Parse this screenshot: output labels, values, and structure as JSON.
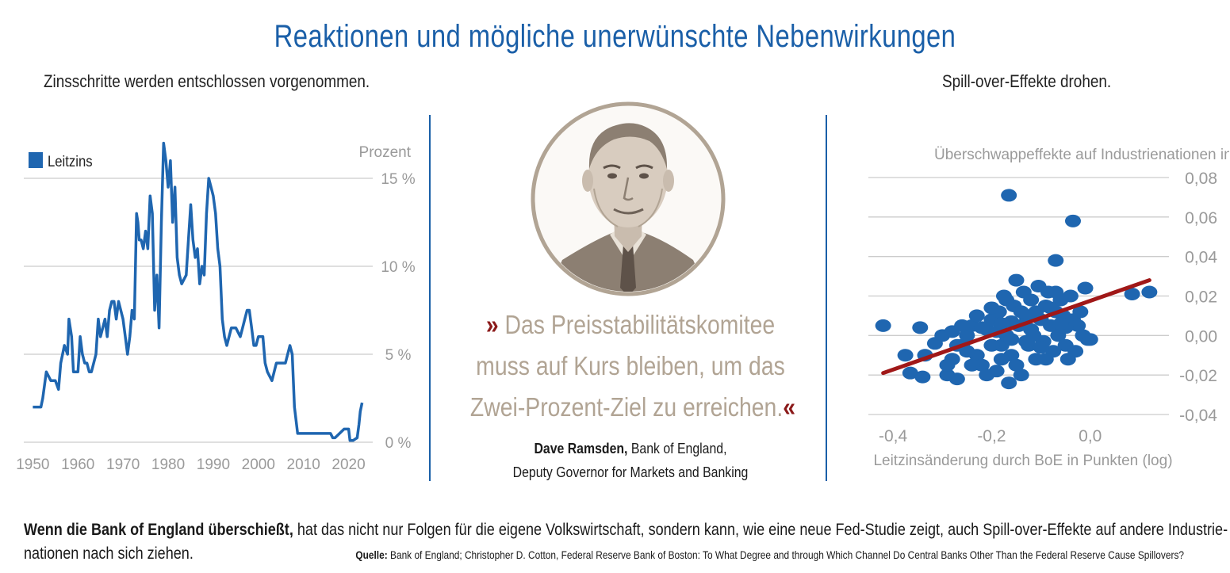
{
  "title": "Reaktionen und mögliche unerwünschte Nebenwirkungen",
  "left_subtitle": "Zinsschritte werden entschlossen vorgenommen.",
  "right_subtitle": "Spill-over-Effekte drohen.",
  "colors": {
    "accent": "#1a5fa8",
    "line": "#1f66b0",
    "trend": "#a01818",
    "quote_text": "#b1a494",
    "guillemet": "#8b1a1a"
  },
  "quote": {
    "open": "»",
    "close": "«",
    "lines": [
      "Das Preisstabilitätskomitee",
      "muss auf Kurs bleiben, um das",
      "Zwei-Prozent-Ziel zu erreichen."
    ],
    "speaker": "Dave Ramsden,",
    "speaker_org": " Bank of England,",
    "speaker_role": "Deputy Governor for Markets and Banking"
  },
  "footer": {
    "bold": "Wenn die Bank of England überschießt,",
    "text": " hat das nicht nur Folgen für die eigene Volkswirtschaft, sondern kann, wie eine neue Fed-Studie zeigt, auch Spill-over-Effekte auf andere Industrie-",
    "text2": "nationen nach sich ziehen.",
    "source_label": "Quelle:",
    "source_text": " Bank of England; Christopher D. Cotton, Federal Reserve Bank of Boston: To What Degree and through Which Channel Do Central Banks Other Than the Federal Reserve Cause Spillovers?"
  },
  "chart_data": [
    {
      "type": "line",
      "ylabel": "Prozent",
      "legend": "Leitzins",
      "legend_position": "top-left",
      "xlim": [
        1948,
        2025
      ],
      "ylim": [
        0,
        15
      ],
      "x_ticks": [
        1950,
        1960,
        1970,
        1980,
        1990,
        2000,
        2010,
        2020
      ],
      "y_ticks": [
        0,
        5,
        10,
        15
      ],
      "y_tick_labels": [
        "0 %",
        "5 %",
        "10 %",
        "15 %"
      ],
      "series": [
        {
          "name": "Leitzins",
          "x": [
            1950,
            1951.8,
            1952.2,
            1953,
            1954,
            1954.5,
            1955,
            1955.7,
            1956.2,
            1957,
            1957.7,
            1958,
            1958.6,
            1959,
            1960,
            1960.5,
            1961,
            1961.5,
            1962,
            1962.5,
            1963,
            1964,
            1964.5,
            1965,
            1966,
            1966.5,
            1967,
            1967.5,
            1968,
            1968.5,
            1969,
            1970,
            1970.5,
            1971,
            1971.5,
            1972,
            1972.5,
            1973,
            1973.3,
            1973.6,
            1974,
            1974.5,
            1975,
            1975.5,
            1976,
            1976.5,
            1977,
            1977.5,
            1978,
            1978.5,
            1979,
            1979.5,
            1980,
            1980.5,
            1981,
            1981.5,
            1982,
            1982.5,
            1983,
            1984,
            1984.5,
            1985,
            1985.5,
            1986,
            1986.5,
            1987,
            1987.5,
            1988,
            1988.5,
            1989,
            1989.5,
            1990,
            1990.5,
            1991,
            1991.5,
            1992,
            1992.5,
            1993,
            1994,
            1994.5,
            1995,
            1996,
            1996.5,
            1997,
            1997.5,
            1998,
            1998.5,
            1999,
            1999.5,
            2000,
            2001,
            2001.5,
            2002,
            2003,
            2003.5,
            2004,
            2005,
            2006,
            2007,
            2007.5,
            2008,
            2008.7,
            2009,
            2009.5,
            2016,
            2016.5,
            2017,
            2018,
            2019,
            2020,
            2020.3,
            2021,
            2021.9,
            2022.3,
            2022.6,
            2023
          ],
          "values": [
            2,
            2,
            2.5,
            4,
            3.5,
            3.5,
            3.5,
            3,
            4.5,
            5.5,
            5,
            7,
            6,
            4,
            4,
            6,
            5,
            4.5,
            4.5,
            4,
            4,
            5,
            7,
            6,
            7,
            6,
            7.5,
            8,
            8,
            7,
            8,
            7,
            6,
            5,
            6,
            7.5,
            7,
            13,
            12.5,
            11.5,
            11.5,
            11,
            12,
            11,
            14,
            13,
            7.5,
            9.5,
            6.5,
            12.5,
            17,
            16,
            14.5,
            16,
            12.5,
            14.5,
            10.5,
            9.5,
            9,
            9.5,
            11.5,
            13.5,
            11.5,
            10.5,
            11,
            9,
            10,
            9.5,
            13,
            15,
            14.5,
            14,
            13,
            11,
            10,
            7,
            6,
            5.5,
            6.5,
            6.5,
            6.5,
            6,
            6.5,
            7,
            7.5,
            7.5,
            6.5,
            5.5,
            5.5,
            6,
            6,
            4.5,
            4,
            3.5,
            4,
            4.5,
            4.5,
            4.5,
            5.5,
            5,
            2,
            0.5,
            0.5,
            0.5,
            0.5,
            0.25,
            0.25,
            0.5,
            0.75,
            0.75,
            0.1,
            0.1,
            0.25,
            1,
            1.75,
            2.25
          ]
        }
      ]
    },
    {
      "type": "scatter",
      "title": "Überschwappeffekte auf Industrienationen in Punkten (log)",
      "xlabel": "Leitzinsänderung durch BoE in Punkten (log)",
      "xlim": [
        -0.45,
        0.15
      ],
      "ylim": [
        -0.04,
        0.08
      ],
      "x_ticks": [
        -0.4,
        -0.2,
        0.0
      ],
      "x_tick_labels": [
        "-0,4",
        "-0,2",
        "0,0"
      ],
      "y_ticks": [
        -0.04,
        -0.02,
        0.0,
        0.02,
        0.04,
        0.06,
        0.08
      ],
      "y_tick_labels": [
        "-0,04",
        "-0,02",
        "0,00",
        "0,02",
        "0,04",
        "0,06",
        "0,08"
      ],
      "trend_line": {
        "x": [
          -0.42,
          0.12
        ],
        "y": [
          -0.019,
          0.028
        ]
      },
      "points": [
        [
          -0.165,
          0.071
        ],
        [
          -0.035,
          0.058
        ],
        [
          -0.07,
          0.038
        ],
        [
          -0.42,
          0.005
        ],
        [
          -0.375,
          -0.01
        ],
        [
          -0.365,
          -0.019
        ],
        [
          -0.34,
          -0.021
        ],
        [
          -0.335,
          -0.01
        ],
        [
          -0.315,
          -0.004
        ],
        [
          -0.345,
          0.004
        ],
        [
          -0.3,
          0.0
        ],
        [
          -0.29,
          -0.02
        ],
        [
          -0.27,
          -0.022
        ],
        [
          -0.28,
          -0.012
        ],
        [
          -0.26,
          -0.005
        ],
        [
          -0.25,
          0.0
        ],
        [
          -0.24,
          0.005
        ],
        [
          -0.23,
          -0.01
        ],
        [
          -0.22,
          -0.015
        ],
        [
          -0.21,
          0.003
        ],
        [
          -0.2,
          0.008
        ],
        [
          -0.19,
          -0.018
        ],
        [
          -0.185,
          0.012
        ],
        [
          -0.18,
          -0.005
        ],
        [
          -0.175,
          0.02
        ],
        [
          -0.17,
          0.0
        ],
        [
          -0.165,
          -0.024
        ],
        [
          -0.16,
          -0.01
        ],
        [
          -0.155,
          0.015
        ],
        [
          -0.15,
          0.028
        ],
        [
          -0.145,
          0.005
        ],
        [
          -0.14,
          -0.02
        ],
        [
          -0.135,
          0.022
        ],
        [
          -0.13,
          0.01
        ],
        [
          -0.125,
          -0.005
        ],
        [
          -0.12,
          0.018
        ],
        [
          -0.115,
          0.0
        ],
        [
          -0.11,
          -0.012
        ],
        [
          -0.105,
          0.025
        ],
        [
          -0.1,
          0.008
        ],
        [
          -0.095,
          -0.003
        ],
        [
          -0.09,
          0.015
        ],
        [
          -0.085,
          0.022
        ],
        [
          -0.08,
          0.005
        ],
        [
          -0.075,
          -0.008
        ],
        [
          -0.07,
          0.012
        ],
        [
          -0.065,
          0.0
        ],
        [
          -0.06,
          0.018
        ],
        [
          -0.055,
          0.01
        ],
        [
          -0.05,
          -0.005
        ],
        [
          -0.045,
          -0.012
        ],
        [
          -0.04,
          0.02
        ],
        [
          -0.035,
          0.008
        ],
        [
          -0.03,
          -0.008
        ],
        [
          -0.025,
          0.005
        ],
        [
          -0.02,
          0.012
        ],
        [
          -0.015,
          0.0
        ],
        [
          -0.01,
          0.024
        ],
        [
          -0.005,
          -0.002
        ],
        [
          0.0,
          -0.002
        ],
        [
          0.085,
          0.021
        ],
        [
          0.12,
          0.022
        ],
        [
          -0.23,
          0.01
        ],
        [
          -0.24,
          -0.015
        ],
        [
          -0.26,
          0.005
        ],
        [
          -0.28,
          0.002
        ],
        [
          -0.21,
          -0.02
        ],
        [
          -0.17,
          0.018
        ],
        [
          -0.19,
          0.002
        ],
        [
          -0.15,
          -0.015
        ],
        [
          -0.13,
          -0.003
        ],
        [
          -0.11,
          0.012
        ],
        [
          -0.09,
          -0.012
        ],
        [
          -0.07,
          0.022
        ],
        [
          -0.05,
          0.004
        ],
        [
          -0.22,
          0.004
        ],
        [
          -0.2,
          -0.005
        ],
        [
          -0.18,
          -0.012
        ],
        [
          -0.16,
          0.007
        ],
        [
          -0.14,
          0.012
        ],
        [
          -0.12,
          0.003
        ],
        [
          -0.1,
          -0.006
        ],
        [
          -0.08,
          0.014
        ],
        [
          -0.06,
          0.006
        ],
        [
          -0.25,
          -0.008
        ],
        [
          -0.27,
          -0.005
        ],
        [
          -0.29,
          -0.015
        ],
        [
          -0.2,
          0.014
        ],
        [
          -0.18,
          0.006
        ],
        [
          -0.16,
          -0.002
        ]
      ]
    }
  ]
}
